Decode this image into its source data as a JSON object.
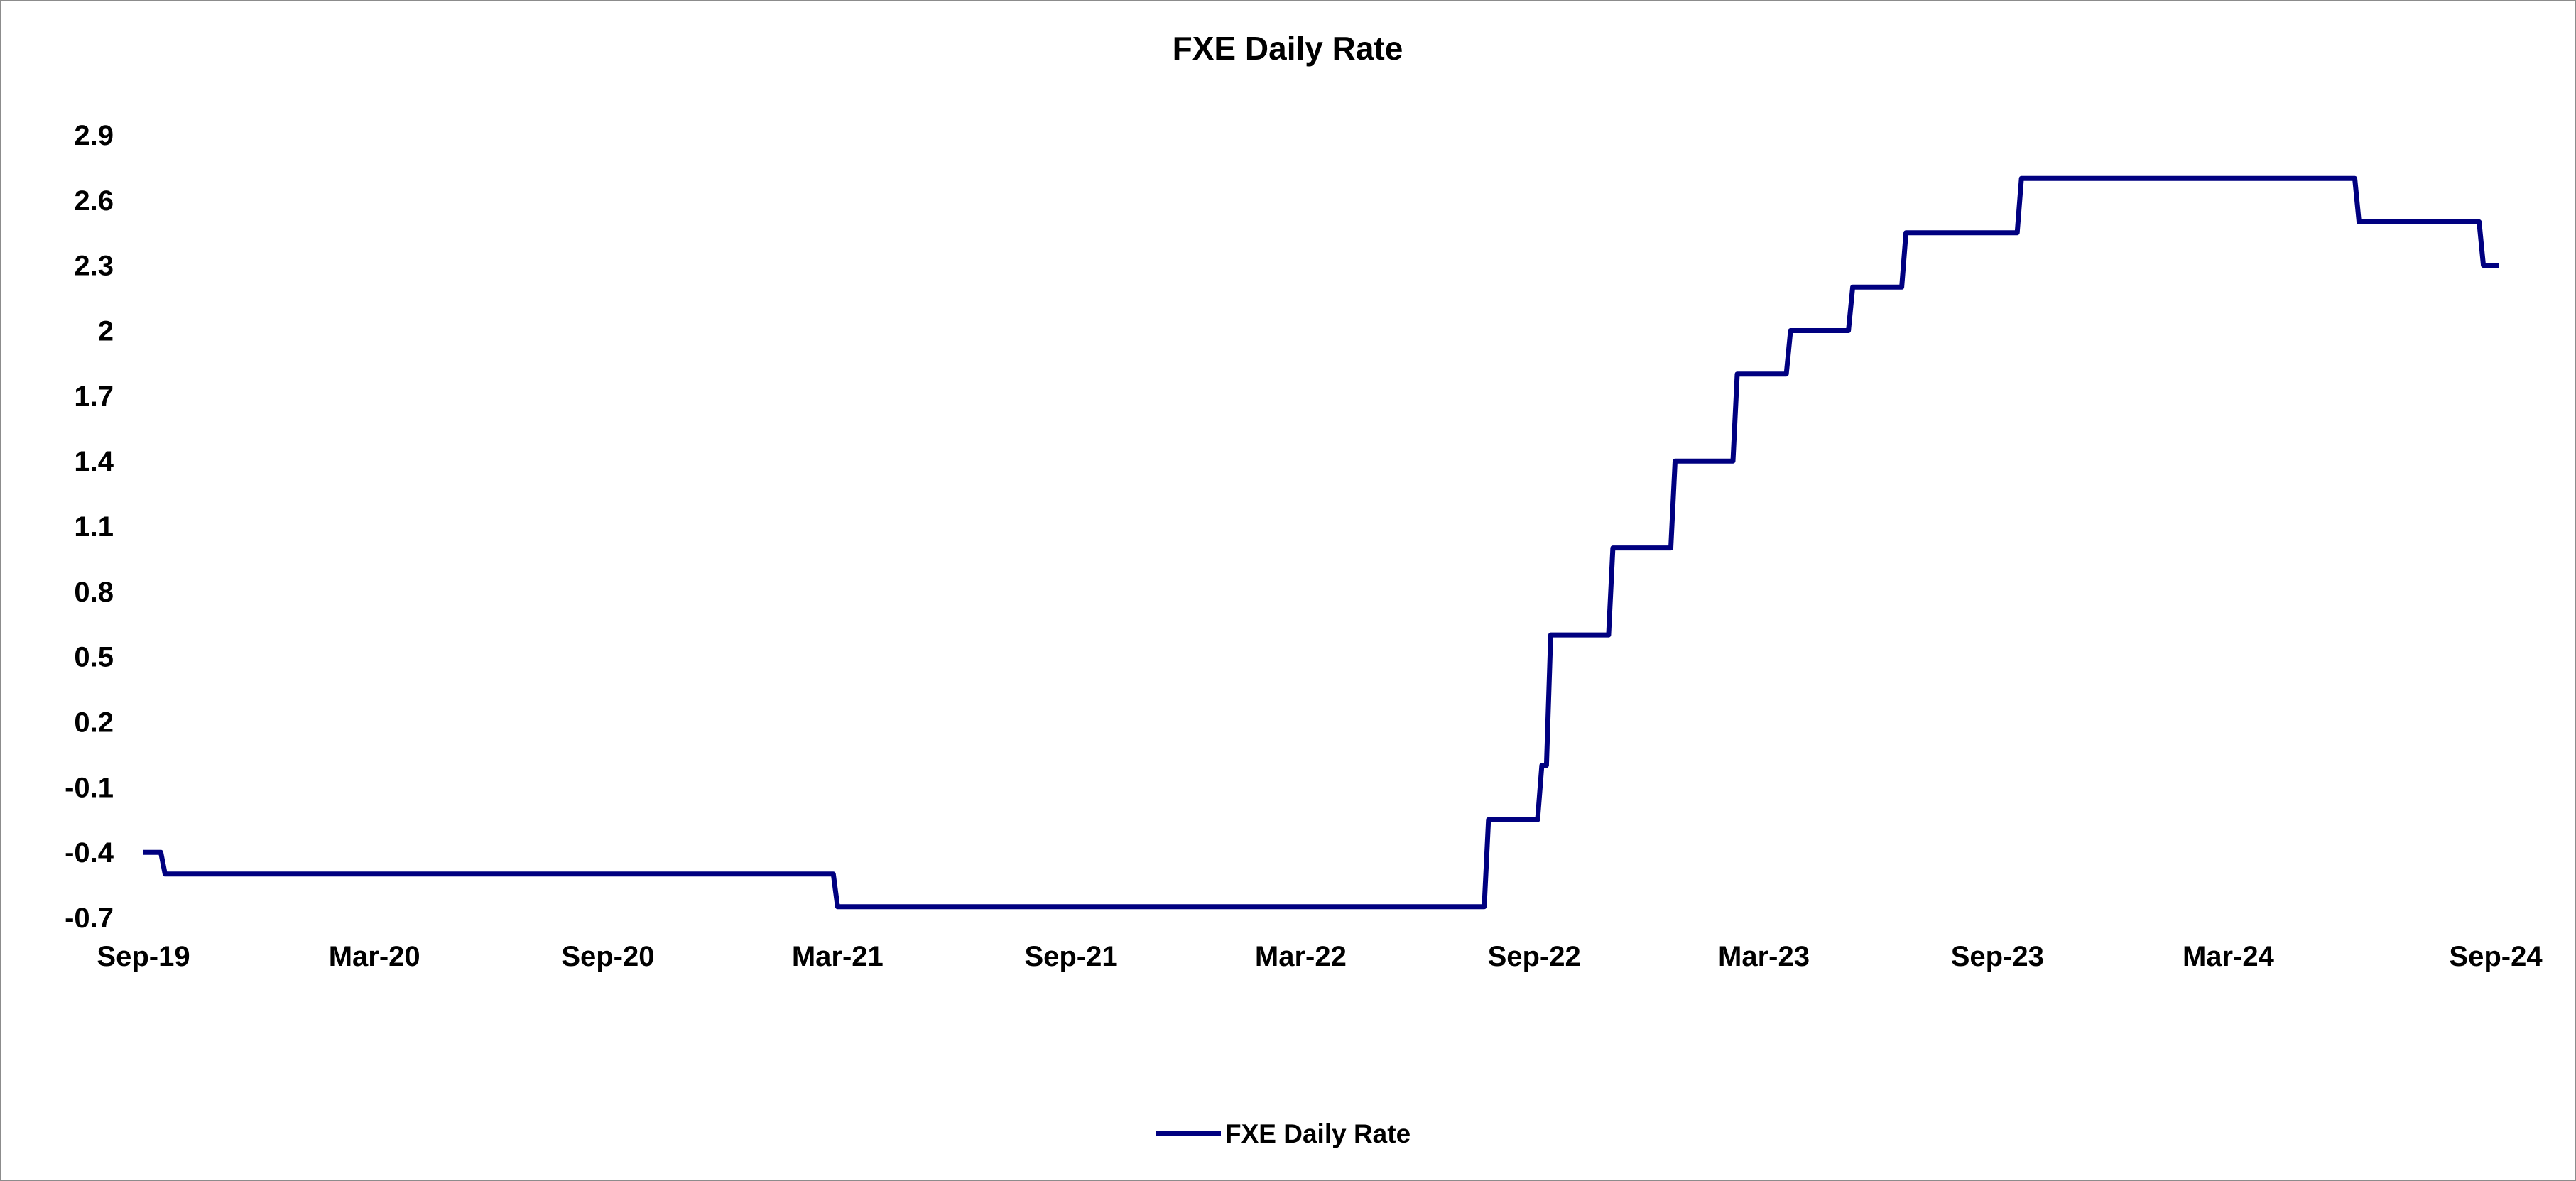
{
  "chart_data": {
    "type": "line",
    "title": "FXE Daily Rate",
    "xlabel": "",
    "ylabel": "",
    "x_axis_type": "date",
    "x_range": [
      "2019-09-01",
      "2024-09-30"
    ],
    "x_ticks": [
      {
        "date": "2019-09-01",
        "label": "Sep-19"
      },
      {
        "date": "2020-03-01",
        "label": "Mar-20"
      },
      {
        "date": "2020-09-01",
        "label": "Sep-20"
      },
      {
        "date": "2021-03-01",
        "label": "Mar-21"
      },
      {
        "date": "2021-09-01",
        "label": "Sep-21"
      },
      {
        "date": "2022-03-01",
        "label": "Mar-22"
      },
      {
        "date": "2022-09-01",
        "label": "Sep-22"
      },
      {
        "date": "2023-03-01",
        "label": "Mar-23"
      },
      {
        "date": "2023-09-01",
        "label": "Sep-23"
      },
      {
        "date": "2024-03-01",
        "label": "Mar-24"
      },
      {
        "date": "2024-09-01",
        "label": "Sep-24"
      }
    ],
    "ylim": [
      -0.7,
      2.9
    ],
    "y_ticks": [
      {
        "value": 2.9,
        "label": "2.9"
      },
      {
        "value": 2.6,
        "label": "2.6"
      },
      {
        "value": 2.3,
        "label": "2.3"
      },
      {
        "value": 2.0,
        "label": "2"
      },
      {
        "value": 1.7,
        "label": "1.7"
      },
      {
        "value": 1.4,
        "label": "1.4"
      },
      {
        "value": 1.1,
        "label": "1.1"
      },
      {
        "value": 0.8,
        "label": "0.8"
      },
      {
        "value": 0.5,
        "label": "0.5"
      },
      {
        "value": 0.2,
        "label": "0.2"
      },
      {
        "value": -0.1,
        "label": "-0.1"
      },
      {
        "value": -0.4,
        "label": "-0.4"
      },
      {
        "value": -0.7,
        "label": "-0.7"
      }
    ],
    "grid": false,
    "legend_position": "bottom",
    "series": [
      {
        "name": "FXE Daily Rate",
        "color": "#000080",
        "step": true,
        "points": [
          {
            "date": "2019-09-01",
            "value": -0.4
          },
          {
            "date": "2019-09-18",
            "value": -0.5
          },
          {
            "date": "2021-03-01",
            "value": -0.65
          },
          {
            "date": "2022-07-27",
            "value": -0.25
          },
          {
            "date": "2022-09-07",
            "value": 0.0
          },
          {
            "date": "2022-09-14",
            "value": 0.6
          },
          {
            "date": "2022-11-02",
            "value": 1.0
          },
          {
            "date": "2022-12-21",
            "value": 1.4
          },
          {
            "date": "2023-02-08",
            "value": 1.8
          },
          {
            "date": "2023-03-22",
            "value": 2.0
          },
          {
            "date": "2023-05-10",
            "value": 2.2
          },
          {
            "date": "2023-06-21",
            "value": 2.45
          },
          {
            "date": "2023-09-20",
            "value": 2.7
          },
          {
            "date": "2024-06-12",
            "value": 2.5
          },
          {
            "date": "2024-09-18",
            "value": 2.3
          },
          {
            "date": "2024-09-30",
            "value": 2.3
          }
        ]
      }
    ]
  }
}
